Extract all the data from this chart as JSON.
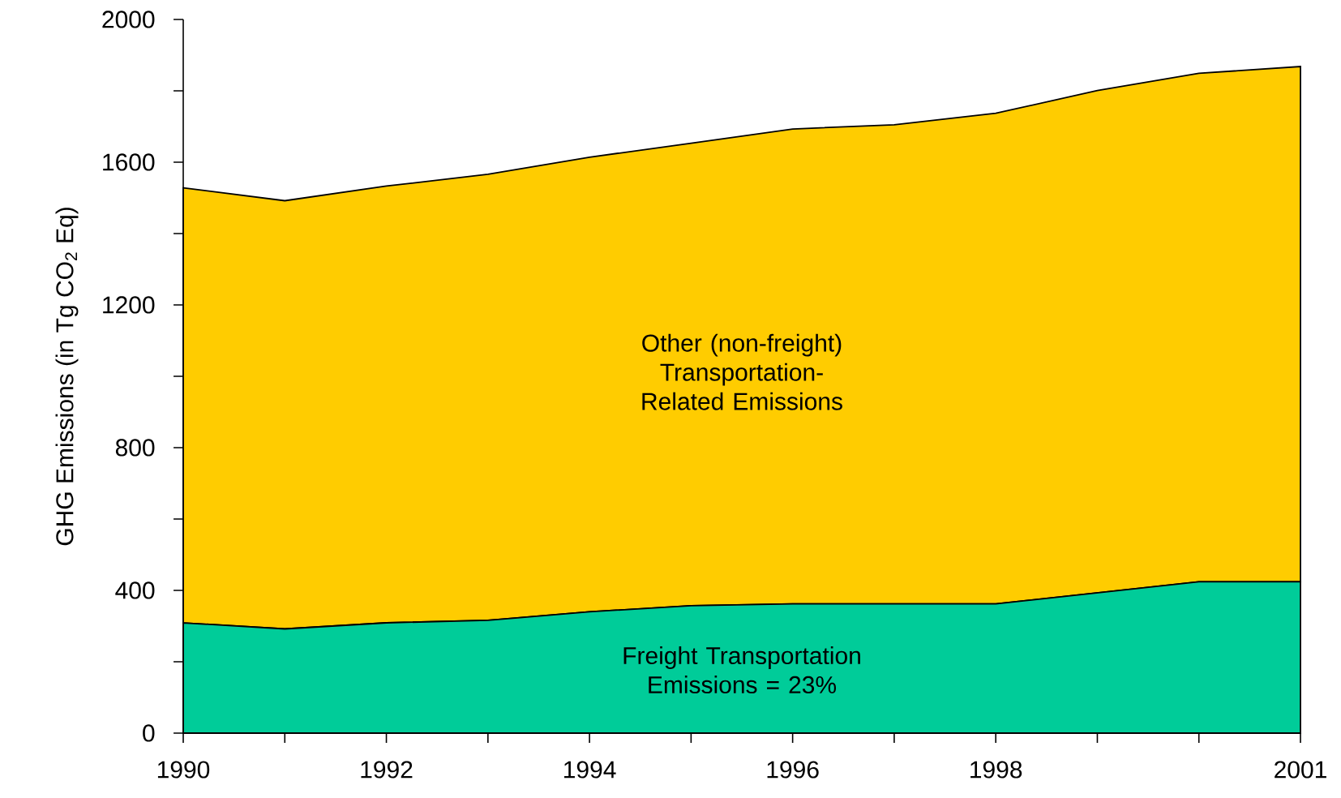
{
  "chart_data": {
    "type": "area",
    "stacked": true,
    "x": [
      1990,
      1991,
      1992,
      1993,
      1994,
      1995,
      1996,
      1997,
      1998,
      1999,
      2000,
      2001
    ],
    "ylabel": "GHG Emissions (in Tg CO$_{2}$ Eq)",
    "series": [
      {
        "name": "Freight Transportation Emissions = 23%",
        "color": "#00CC99",
        "values": [
          309,
          292,
          309,
          316,
          340,
          357,
          362,
          362,
          362,
          393,
          424,
          424
        ]
      },
      {
        "name": "Other (non-freight) Transportation-Related Emissions",
        "color": "#FFCC00",
        "values": [
          1219,
          1200,
          1224,
          1250,
          1274,
          1296,
          1331,
          1343,
          1375,
          1408,
          1425,
          1444
        ]
      }
    ],
    "xlim": [
      1990,
      2001
    ],
    "ylim": [
      0,
      2000
    ],
    "xticks": [
      1990,
      {
        "value": 1991,
        "label": null
      },
      1992,
      {
        "value": 1993,
        "label": null
      },
      1994,
      {
        "value": 1995,
        "label": null
      },
      1996,
      {
        "value": 1997,
        "label": null
      },
      1998,
      {
        "value": 1999,
        "label": null
      },
      {
        "value": 2000,
        "label": null
      },
      2001
    ],
    "yticks": [
      0,
      {
        "value": 200,
        "label": null
      },
      400,
      {
        "value": 600,
        "label": null
      },
      800,
      {
        "value": 1000,
        "label": null
      },
      1200,
      {
        "value": 1400,
        "label": null
      },
      1600,
      {
        "value": 1800,
        "label": null
      },
      2000
    ]
  }
}
